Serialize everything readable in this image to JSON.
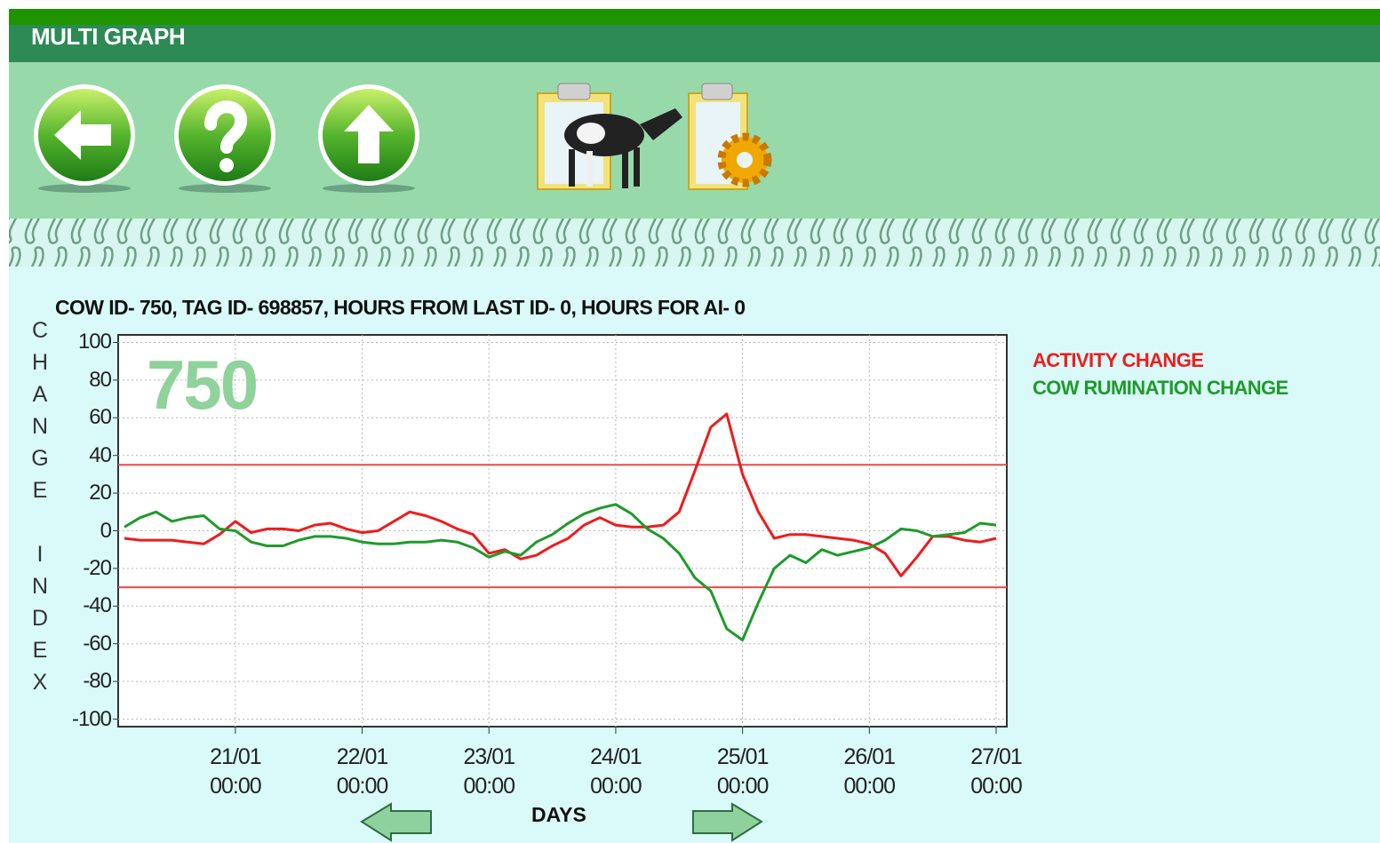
{
  "header": {
    "title": "MULTI GRAPH"
  },
  "chart_data": {
    "type": "line",
    "title": "COW ID- 750, TAG ID- 698857, HOURS FROM LAST ID- 0, HOURS FOR AI- 0",
    "watermark": "750",
    "ylabel": "CHANGE INDEX",
    "xlabel": "DAYS",
    "x": [
      "20/01 03:00",
      "20/01 06:00",
      "20/01 09:00",
      "20/01 12:00",
      "20/01 15:00",
      "20/01 18:00",
      "20/01 21:00",
      "21/01 00:00",
      "21/01 03:00",
      "21/01 06:00",
      "21/01 09:00",
      "21/01 12:00",
      "21/01 15:00",
      "21/01 18:00",
      "21/01 21:00",
      "22/01 00:00",
      "22/01 03:00",
      "22/01 06:00",
      "22/01 09:00",
      "22/01 12:00",
      "22/01 15:00",
      "22/01 18:00",
      "22/01 21:00",
      "23/01 00:00",
      "23/01 03:00",
      "23/01 06:00",
      "23/01 09:00",
      "23/01 12:00",
      "23/01 15:00",
      "23/01 18:00",
      "23/01 21:00",
      "24/01 00:00",
      "24/01 03:00",
      "24/01 06:00",
      "24/01 09:00",
      "24/01 12:00",
      "24/01 15:00",
      "24/01 18:00",
      "24/01 21:00",
      "25/01 00:00",
      "25/01 03:00",
      "25/01 06:00",
      "25/01 09:00",
      "25/01 12:00",
      "25/01 15:00",
      "25/01 18:00",
      "25/01 21:00",
      "26/01 00:00",
      "26/01 03:00",
      "26/01 06:00",
      "26/01 09:00",
      "26/01 12:00",
      "26/01 15:00",
      "26/01 18:00",
      "26/01 21:00",
      "27/01 00:00"
    ],
    "series": [
      {
        "name": "ACTIVITY CHANGE",
        "color": "#ee1c1c",
        "values": [
          -4,
          -5,
          -5,
          -5,
          -6,
          -7,
          -2,
          5,
          -1,
          1,
          1,
          0,
          3,
          4,
          1,
          -1,
          0,
          5,
          10,
          8,
          5,
          1,
          -2,
          -12,
          -10,
          -15,
          -13,
          -8,
          -4,
          3,
          7,
          3,
          2,
          2,
          3,
          10,
          32,
          55,
          62,
          30,
          10,
          -4,
          -2,
          -2,
          -3,
          -4,
          -5,
          -7,
          -12,
          -24,
          -14,
          -3,
          -3,
          -5,
          -6,
          -4
        ]
      },
      {
        "name": "COW RUMINATION CHANGE",
        "color": "#1f9a2a",
        "values": [
          2,
          7,
          10,
          5,
          7,
          8,
          1,
          0,
          -6,
          -8,
          -8,
          -5,
          -3,
          -3,
          -4,
          -6,
          -7,
          -7,
          -6,
          -6,
          -5,
          -6,
          -9,
          -14,
          -11,
          -13,
          -6,
          -2,
          4,
          9,
          12,
          14,
          9,
          1,
          -4,
          -12,
          -25,
          -32,
          -52,
          -58,
          -38,
          -20,
          -13,
          -17,
          -10,
          -13,
          -11,
          -9,
          -5,
          1,
          0,
          -3,
          -2,
          -1,
          4,
          3
        ]
      }
    ],
    "ylim": [
      -104,
      104
    ],
    "yticks": [
      100,
      80,
      60,
      40,
      20,
      0,
      -20,
      -40,
      -60,
      -80,
      -100
    ],
    "xticks": [
      {
        "value": "21/01 00:00",
        "label": "21/01\n00:00"
      },
      {
        "value": "22/01 00:00",
        "label": "22/01\n00:00"
      },
      {
        "value": "23/01 00:00",
        "label": "23/01\n00:00"
      },
      {
        "value": "24/01 00:00",
        "label": "24/01\n00:00"
      },
      {
        "value": "25/01 00:00",
        "label": "25/01\n00:00"
      },
      {
        "value": "26/01 00:00",
        "label": "26/01\n00:00"
      },
      {
        "value": "27/01 00:00",
        "label": "27/01\n00:00"
      }
    ],
    "hlines": [
      35,
      -30
    ],
    "hline_color": "#f04848",
    "grid": true,
    "legend": "right"
  }
}
